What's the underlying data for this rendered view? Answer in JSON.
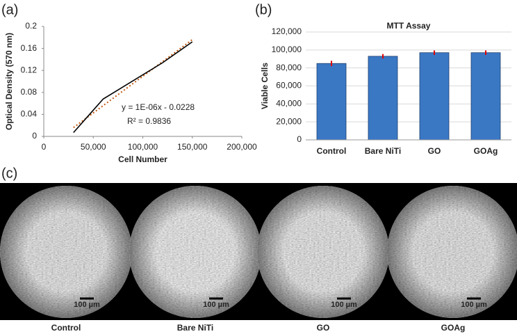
{
  "chart_data": [
    {
      "type": "line",
      "panel_label": "(a)",
      "x": [
        30000,
        60000,
        90000,
        120000,
        150000
      ],
      "values": [
        0.007,
        0.068,
        0.101,
        0.134,
        0.172
      ],
      "color": "#000000",
      "trendline": {
        "x": [
          30000,
          150000
        ],
        "values": [
          0.016,
          0.176
        ],
        "color": "#c55a11",
        "equation": "y = 1E-06x - 0.0228",
        "r2": "R² = 0.9836"
      },
      "x_label": "Cell Number",
      "y_label": "Optical Density (570 nm)",
      "xlim": [
        0,
        200000
      ],
      "xticks": [
        0,
        {
          "value": 50000,
          "label": "50,000"
        },
        {
          "value": 100000,
          "label": "100,000"
        },
        {
          "value": 150000,
          "label": "150,000"
        },
        {
          "value": 200000,
          "label": "200,000"
        }
      ],
      "ylim": [
        0,
        0.2
      ],
      "yticks": [
        0,
        0.04,
        0.08,
        0.12,
        0.16,
        0.2
      ],
      "grid": false
    },
    {
      "type": "bar",
      "panel_label": "(b)",
      "title": "MTT Assay",
      "categories": [
        "Control",
        "Bare NiTi",
        "GO",
        "GOAg"
      ],
      "values": [
        85000,
        93000,
        97000,
        97000
      ],
      "errors": [
        3000,
        2500,
        2500,
        2500
      ],
      "color": "#3a78c4",
      "error_color": "#e00000",
      "y_label": "Viable Cells",
      "ylim": [
        0,
        120000
      ],
      "yticks": [
        0,
        {
          "value": 20000,
          "label": "20,000"
        },
        {
          "value": 40000,
          "label": "40,000"
        },
        {
          "value": 60000,
          "label": "60,000"
        },
        {
          "value": 80000,
          "label": "80,000"
        },
        {
          "value": 100000,
          "label": "100,000"
        },
        {
          "value": 120000,
          "label": "120,000"
        }
      ],
      "grid": true
    }
  ],
  "images": {
    "panel_label": "(c)",
    "items": [
      {
        "label": "Control",
        "scale": "100 µm"
      },
      {
        "label": "Bare NiTi",
        "scale": "100 µm"
      },
      {
        "label": "GO",
        "scale": "100 µm"
      },
      {
        "label": "GOAg",
        "scale": "100 µm"
      }
    ]
  }
}
